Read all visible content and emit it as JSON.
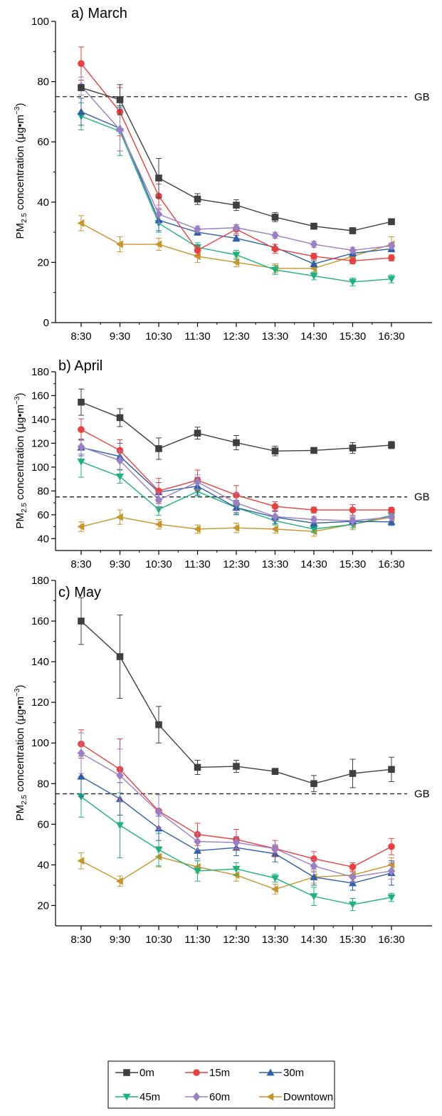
{
  "chart_data": [
    {
      "type": "line",
      "title": "a) March",
      "ylabel": "PM2.5 concentration (μg•m⁻³)",
      "ylabel_parts": {
        "pre": "PM",
        "sub": "2.5",
        "post": " concentration (μg•m",
        "sup": "−3",
        "close": ")"
      },
      "categories": [
        "8:30",
        "9:30",
        "10:30",
        "11:30",
        "12:30",
        "13:30",
        "14:30",
        "15:30",
        "16:30"
      ],
      "ylim": [
        0,
        100
      ],
      "yticks": [
        "0",
        "20",
        "40",
        "60",
        "80",
        "100"
      ],
      "reference_line": {
        "label": "GB",
        "value": 75
      },
      "series": [
        {
          "name": "0m",
          "values": [
            78,
            74,
            48,
            41,
            39,
            35,
            32,
            30.5,
            33.5
          ],
          "err": [
            1,
            5,
            6.5,
            1.8,
            1.8,
            1.5,
            1,
            1,
            0.8
          ]
        },
        {
          "name": "15m",
          "values": [
            86,
            70,
            42,
            24,
            31,
            24.5,
            22,
            20.5,
            21.5
          ],
          "err": [
            5.5,
            8,
            4,
            1.5,
            1.5,
            1.5,
            1,
            1,
            1
          ]
        },
        {
          "name": "30m",
          "values": [
            70,
            64.5,
            34,
            30,
            28,
            25,
            19.5,
            23,
            24.5
          ],
          "err": [
            4.5,
            7.5,
            3.5,
            1,
            1,
            1,
            1,
            1,
            1
          ]
        },
        {
          "name": "45m",
          "values": [
            68.5,
            63.5,
            33,
            25,
            22.5,
            17.5,
            15.5,
            13.5,
            14.5
          ],
          "err": [
            4.5,
            8,
            3,
            1.5,
            1.5,
            1.5,
            1.3,
            1.3,
            1.3
          ]
        },
        {
          "name": "60m",
          "values": [
            78.5,
            64,
            36,
            31,
            31.5,
            29,
            26,
            24,
            25.5
          ],
          "err": [
            3,
            7,
            3,
            1,
            1,
            1,
            1,
            1,
            1
          ]
        },
        {
          "name": "Downtown",
          "values": [
            33,
            26,
            26,
            22,
            20,
            18,
            18,
            22,
            26
          ],
          "err": [
            2.5,
            2.5,
            2,
            2,
            1.5,
            1.5,
            1.5,
            1.5,
            2.5
          ]
        }
      ]
    },
    {
      "type": "line",
      "title": "b) April",
      "ylabel": "PM2.5 concentration (μg•m⁻³)",
      "ylabel_parts": {
        "pre": "PM",
        "sub": "2.5",
        "post": " concentration (μg•m",
        "sup": "−3",
        "close": ")"
      },
      "categories": [
        "8:30",
        "9:30",
        "10:30",
        "11:30",
        "12:30",
        "13:30",
        "14:30",
        "15:30",
        "16:30"
      ],
      "ylim": [
        30,
        180
      ],
      "yticks": [
        "40",
        "60",
        "80",
        "100",
        "120",
        "140",
        "160",
        "180"
      ],
      "reference_line": {
        "label": "GB",
        "value": 75
      },
      "series": [
        {
          "name": "0m",
          "values": [
            154.5,
            141.5,
            115.5,
            128.5,
            120.5,
            113.5,
            114,
            116,
            118.5
          ],
          "err": [
            11,
            7.5,
            9,
            5,
            6,
            4,
            2,
            4.5,
            3
          ]
        },
        {
          "name": "15m",
          "values": [
            131.5,
            114,
            80,
            89,
            76.5,
            67,
            64,
            64,
            64
          ],
          "err": [
            9,
            9,
            10.5,
            8.5,
            8,
            4,
            2.5,
            4.5,
            2
          ]
        },
        {
          "name": "30m",
          "values": [
            116.5,
            109,
            79,
            84,
            66,
            58,
            53,
            54.5,
            54
          ],
          "err": [
            7,
            11,
            8,
            7.5,
            6,
            5.5,
            3.5,
            3,
            3
          ]
        },
        {
          "name": "45m",
          "values": [
            104.5,
            92,
            64.5,
            79.5,
            66,
            55,
            48,
            52,
            59.5
          ],
          "err": [
            13,
            5.5,
            5,
            4,
            5,
            3.5,
            3,
            3,
            2
          ]
        },
        {
          "name": "60m",
          "values": [
            117,
            105.5,
            72.5,
            87.5,
            70,
            58.5,
            56,
            55,
            58
          ],
          "err": [
            6,
            8,
            7,
            6,
            8,
            4,
            2.5,
            3.5,
            3
          ]
        },
        {
          "name": "Downtown",
          "values": [
            50,
            58,
            52,
            48,
            49,
            48,
            46,
            52,
            58
          ],
          "err": [
            4,
            6,
            4,
            3.5,
            4,
            3.5,
            4,
            4.5,
            4
          ]
        }
      ]
    },
    {
      "type": "line",
      "title": "c) May",
      "ylabel": "PM2.5 concentration (μg•m⁻³)",
      "ylabel_parts": {
        "pre": "PM",
        "sub": "2.5",
        "post": " concentration (μg•m",
        "sup": "−3",
        "close": ")"
      },
      "categories": [
        "8:30",
        "9:30",
        "10:30",
        "11:30",
        "12:30",
        "13:30",
        "14:30",
        "15:30",
        "16:30"
      ],
      "ylim": [
        10,
        180
      ],
      "yticks": [
        "20",
        "40",
        "60",
        "80",
        "100",
        "120",
        "140",
        "160",
        "180"
      ],
      "reference_line": {
        "label": "GB",
        "value": 75
      },
      "series": [
        {
          "name": "0m",
          "values": [
            160,
            142.5,
            109,
            88,
            88.5,
            86,
            80,
            85,
            87
          ],
          "err": [
            11.5,
            20.5,
            9,
            3.5,
            3,
            1.5,
            4,
            7,
            6
          ]
        },
        {
          "name": "15m",
          "values": [
            99.5,
            87,
            66.5,
            55,
            52.5,
            48,
            43,
            39,
            49
          ],
          "err": [
            7,
            15,
            8,
            5.5,
            5,
            4,
            3.5,
            2,
            4
          ]
        },
        {
          "name": "30m",
          "values": [
            83.5,
            72.5,
            58,
            47,
            48.5,
            45.5,
            34,
            31,
            36
          ],
          "err": [
            10,
            8,
            6,
            4,
            4,
            4,
            4,
            3.5,
            6
          ]
        },
        {
          "name": "45m",
          "values": [
            73.5,
            59.5,
            47.5,
            37,
            38,
            33.5,
            24.5,
            20.5,
            24
          ],
          "err": [
            10,
            16,
            8,
            5,
            3,
            2,
            4.5,
            3,
            2
          ]
        },
        {
          "name": "60m",
          "values": [
            95,
            84,
            66,
            51.5,
            51,
            48,
            39.5,
            34,
            37
          ],
          "err": [
            10,
            13,
            8.5,
            4,
            3,
            2,
            3,
            2.5,
            4
          ]
        },
        {
          "name": "Downtown",
          "values": [
            42,
            32,
            44,
            39,
            35,
            28,
            34,
            35,
            40
          ],
          "err": [
            4,
            2.5,
            5,
            3,
            3,
            2.5,
            3,
            3,
            3.5
          ]
        }
      ]
    }
  ],
  "legend": {
    "items": [
      {
        "name": "0m",
        "color": "#3f3f3f",
        "marker": "square"
      },
      {
        "name": "15m",
        "color": "#e8413f",
        "marker": "circle"
      },
      {
        "name": "30m",
        "color": "#2e5fa8",
        "marker": "triangle-up"
      },
      {
        "name": "45m",
        "color": "#1db37a",
        "marker": "triangle-down"
      },
      {
        "name": "60m",
        "color": "#9b7fc6",
        "marker": "diamond"
      },
      {
        "name": "Downtown",
        "color": "#c8952a",
        "marker": "triangle-left"
      }
    ]
  }
}
